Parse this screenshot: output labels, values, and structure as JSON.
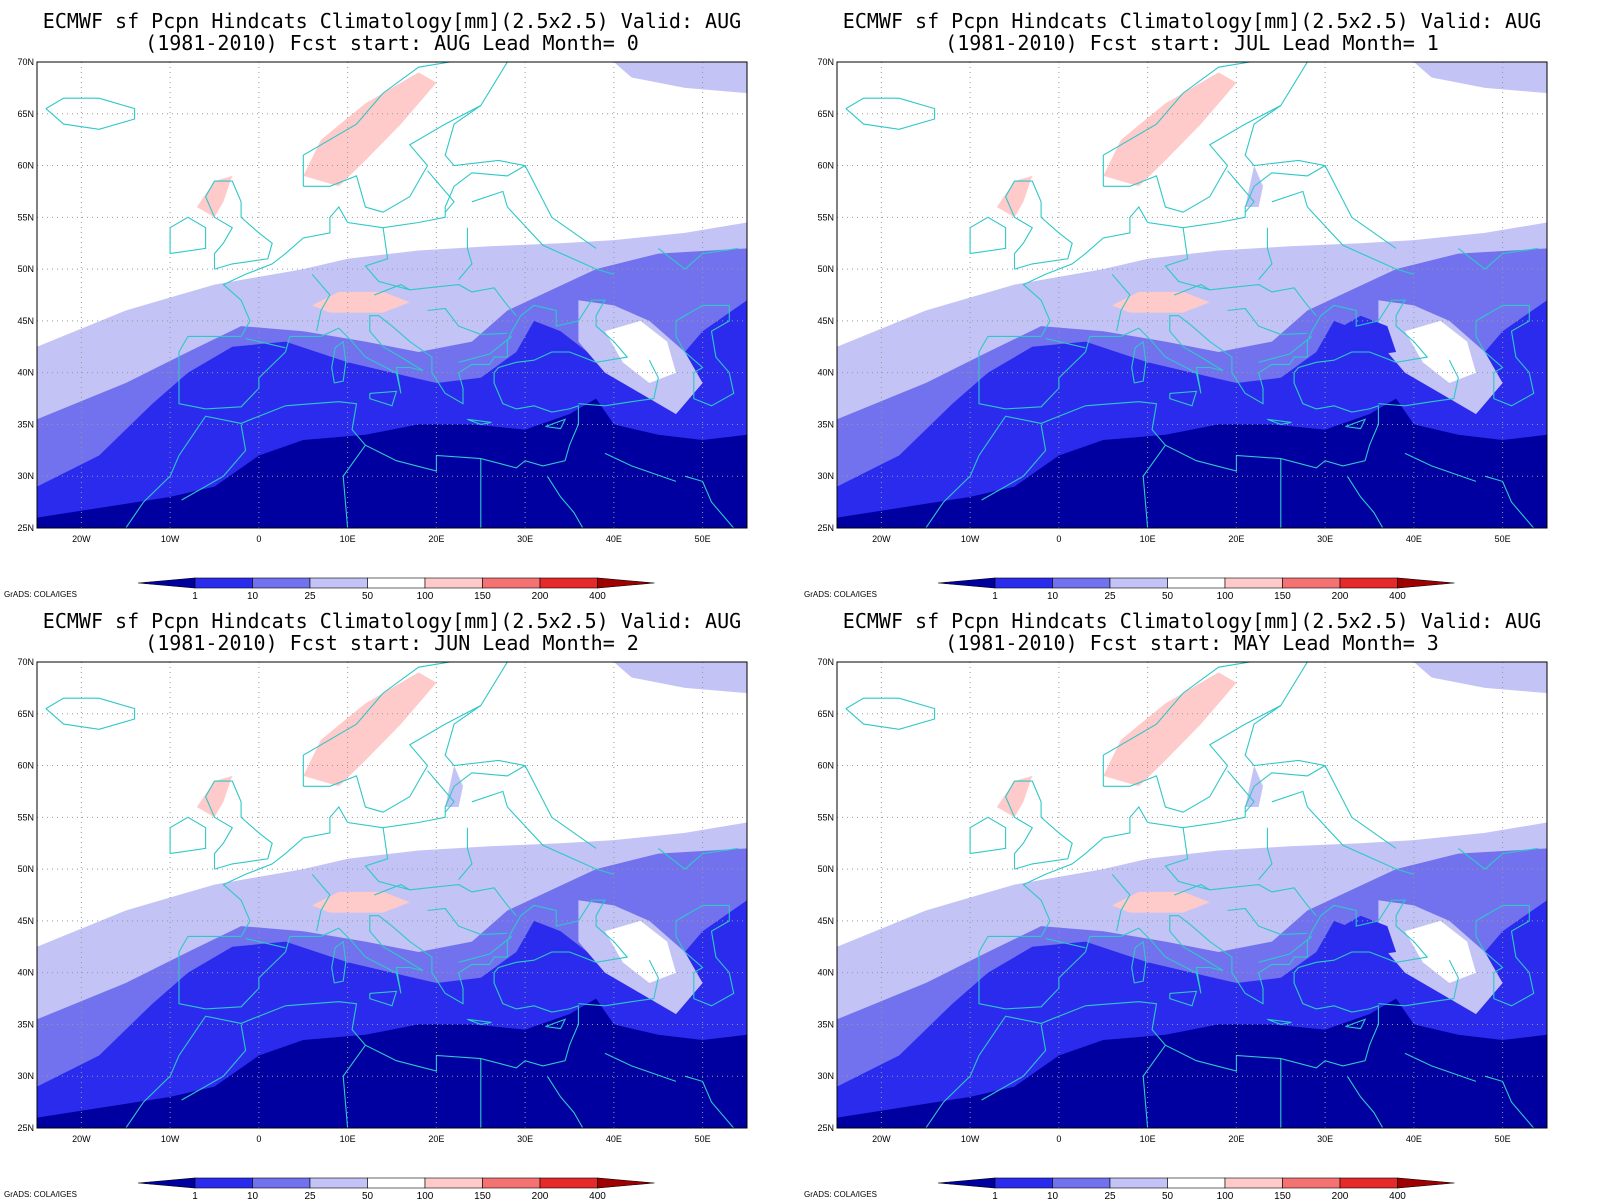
{
  "map_common": {
    "lat_labels": [
      "70N",
      "65N",
      "60N",
      "55N",
      "50N",
      "45N",
      "40N",
      "35N",
      "30N",
      "25N"
    ],
    "lon_labels": [
      "20W",
      "10W",
      "0",
      "10E",
      "20E",
      "30E",
      "40E",
      "50E"
    ],
    "colorbar": {
      "labels": [
        "1",
        "10",
        "25",
        "50",
        "100",
        "150",
        "200",
        "400"
      ],
      "colors": [
        "#0000a0",
        "#2b2bee",
        "#7272ee",
        "#c3c3f5",
        "#ffffff",
        "#ffcaca",
        "#f57272",
        "#e62a2a",
        "#a00000"
      ]
    },
    "credit": "GrADS: COLA/IGES",
    "coast_color": "#2ec8c8"
  },
  "panels": [
    {
      "title_line1": "ECMWF sf Pcpn Hindcats Climatology[mm](2.5x2.5) Valid: AUG",
      "title_line2": "(1981-2010) Fcst start: AUG  Lead Month= 0",
      "lead": 0
    },
    {
      "title_line1": "ECMWF sf Pcpn Hindcats Climatology[mm](2.5x2.5) Valid: AUG",
      "title_line2": "(1981-2010) Fcst start: JUL  Lead Month= 1",
      "lead": 1
    },
    {
      "title_line1": "ECMWF sf Pcpn Hindcats Climatology[mm](2.5x2.5) Valid: AUG",
      "title_line2": "(1981-2010) Fcst start: JUN  Lead Month= 2",
      "lead": 2
    },
    {
      "title_line1": "ECMWF sf Pcpn Hindcats Climatology[mm](2.5x2.5) Valid: AUG",
      "title_line2": "(1981-2010) Fcst start: MAY  Lead Month= 3",
      "lead": 3
    }
  ]
}
